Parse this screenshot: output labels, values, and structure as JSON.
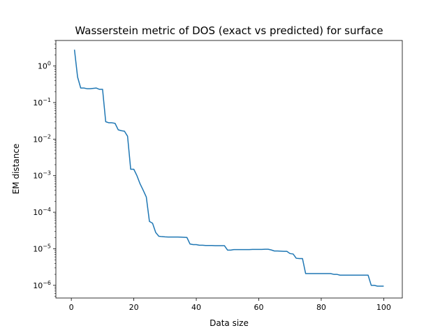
{
  "chart_data": {
    "type": "line",
    "title": "Wasserstein metric of DOS (exact vs predicted) for surface",
    "xlabel": "Data size",
    "ylabel": "EM distance",
    "yscale": "log",
    "xlim": [
      -4.95,
      105.95
    ],
    "ylim": [
      4.5e-07,
      5.0
    ],
    "xticks": [
      {
        "value": 0,
        "label": "0"
      },
      {
        "value": 20,
        "label": "20"
      },
      {
        "value": 40,
        "label": "40"
      },
      {
        "value": 60,
        "label": "60"
      },
      {
        "value": 80,
        "label": "80"
      },
      {
        "value": 100,
        "label": "100"
      }
    ],
    "yticks": [
      {
        "value": 1e-06,
        "base": "10",
        "exp": "−6"
      },
      {
        "value": 1e-05,
        "base": "10",
        "exp": "−5"
      },
      {
        "value": 0.0001,
        "base": "10",
        "exp": "−4"
      },
      {
        "value": 0.001,
        "base": "10",
        "exp": "−3"
      },
      {
        "value": 0.01,
        "base": "10",
        "exp": "−2"
      },
      {
        "value": 0.1,
        "base": "10",
        "exp": "−1"
      },
      {
        "value": 1,
        "base": "10",
        "exp": "0"
      }
    ],
    "grid": false,
    "legend": "none",
    "series": [
      {
        "color": "#1f77b4",
        "x": [
          1,
          2,
          3,
          4,
          5,
          6,
          7,
          8,
          9,
          10,
          11,
          12,
          13,
          14,
          15,
          16,
          17,
          18,
          19,
          20,
          21,
          22,
          23,
          24,
          25,
          26,
          27,
          28,
          29,
          30,
          31,
          32,
          33,
          34,
          35,
          36,
          37,
          38,
          39,
          40,
          41,
          42,
          43,
          44,
          45,
          46,
          47,
          48,
          49,
          50,
          51,
          52,
          53,
          54,
          55,
          56,
          57,
          58,
          59,
          60,
          61,
          62,
          63,
          64,
          65,
          66,
          67,
          68,
          69,
          70,
          71,
          72,
          73,
          74,
          75,
          76,
          77,
          78,
          79,
          80,
          81,
          82,
          83,
          84,
          85,
          86,
          87,
          88,
          89,
          90,
          91,
          92,
          93,
          94,
          95,
          96,
          97,
          98,
          99,
          100
        ],
        "y": [
          2.8,
          0.5,
          0.25,
          0.25,
          0.24,
          0.24,
          0.245,
          0.25,
          0.23,
          0.23,
          0.03,
          0.028,
          0.028,
          0.027,
          0.018,
          0.017,
          0.0165,
          0.012,
          0.0015,
          0.0015,
          0.001,
          0.0006,
          0.0004,
          0.00026,
          5.6e-05,
          5e-05,
          2.8e-05,
          2.2e-05,
          2.15e-05,
          2.12e-05,
          2.1e-05,
          2.1e-05,
          2.1e-05,
          2.1e-05,
          2.08e-05,
          2.06e-05,
          2.04e-05,
          1.35e-05,
          1.3e-05,
          1.3e-05,
          1.25e-05,
          1.25e-05,
          1.23e-05,
          1.23e-05,
          1.23e-05,
          1.22e-05,
          1.22e-05,
          1.22e-05,
          1.22e-05,
          9.2e-06,
          9.2e-06,
          9.5e-06,
          9.5e-06,
          9.5e-06,
          9.5e-06,
          9.5e-06,
          9.5e-06,
          9.6e-06,
          9.6e-06,
          9.6e-06,
          9.6e-06,
          9.7e-06,
          9.7e-06,
          9.3e-06,
          8.7e-06,
          8.7e-06,
          8.6e-06,
          8.5e-06,
          8.5e-06,
          7.4e-06,
          7.2e-06,
          5.5e-06,
          5.4e-06,
          5.4e-06,
          2.1e-06,
          2.1e-06,
          2.1e-06,
          2.1e-06,
          2.1e-06,
          2.1e-06,
          2.1e-06,
          2.1e-06,
          2.1e-06,
          2e-06,
          2e-06,
          1.9e-06,
          1.9e-06,
          1.9e-06,
          1.9e-06,
          1.9e-06,
          1.9e-06,
          1.9e-06,
          1.9e-06,
          1.9e-06,
          1.9e-06,
          1e-06,
          1e-06,
          9.5e-07,
          9.5e-07,
          9.5e-07
        ]
      }
    ]
  }
}
